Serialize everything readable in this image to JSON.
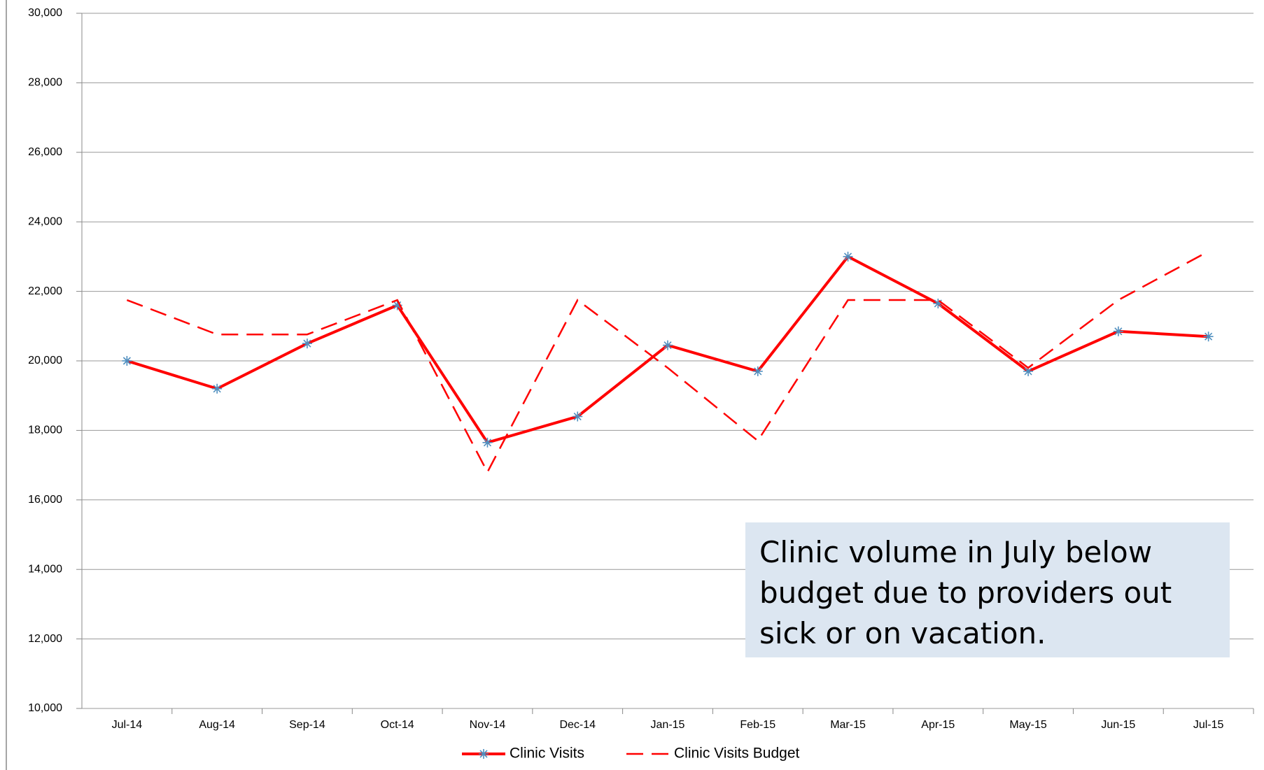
{
  "chart_data": {
    "type": "line",
    "categories": [
      "Jul-14",
      "Aug-14",
      "Sep-14",
      "Oct-14",
      "Nov-14",
      "Dec-14",
      "Jan-15",
      "Feb-15",
      "Mar-15",
      "Apr-15",
      "May-15",
      "Jun-15",
      "Jul-15"
    ],
    "series": [
      {
        "name": "Clinic Visits",
        "color": "#ff0000",
        "marker_color": "#4f8fbf",
        "dashed": false,
        "values": [
          20000,
          19200,
          20500,
          21600,
          17650,
          18400,
          20450,
          19700,
          23000,
          21650,
          19700,
          20850,
          20700
        ]
      },
      {
        "name": "Clinic Visits Budget",
        "color": "#ff0000",
        "dashed": true,
        "values": [
          21750,
          20760,
          20760,
          21750,
          16800,
          21750,
          19800,
          17700,
          21750,
          21750,
          19800,
          21750,
          23150
        ]
      }
    ],
    "ylim": [
      10000,
      30000
    ],
    "yticks": [
      {
        "value": 10000,
        "label": "10,000"
      },
      {
        "value": 12000,
        "label": "12,000"
      },
      {
        "value": 14000,
        "label": "14,000"
      },
      {
        "value": 16000,
        "label": "16,000"
      },
      {
        "value": 18000,
        "label": "18,000"
      },
      {
        "value": 20000,
        "label": "20,000"
      },
      {
        "value": 22000,
        "label": "22,000"
      },
      {
        "value": 24000,
        "label": "24,000"
      },
      {
        "value": 26000,
        "label": "26,000"
      },
      {
        "value": 28000,
        "label": "28,000"
      },
      {
        "value": 30000,
        "label": "30,000"
      }
    ],
    "grid": true,
    "legend": "bottom",
    "annotation": "Clinic volume in July below budget due to providers out sick or on vacation."
  }
}
